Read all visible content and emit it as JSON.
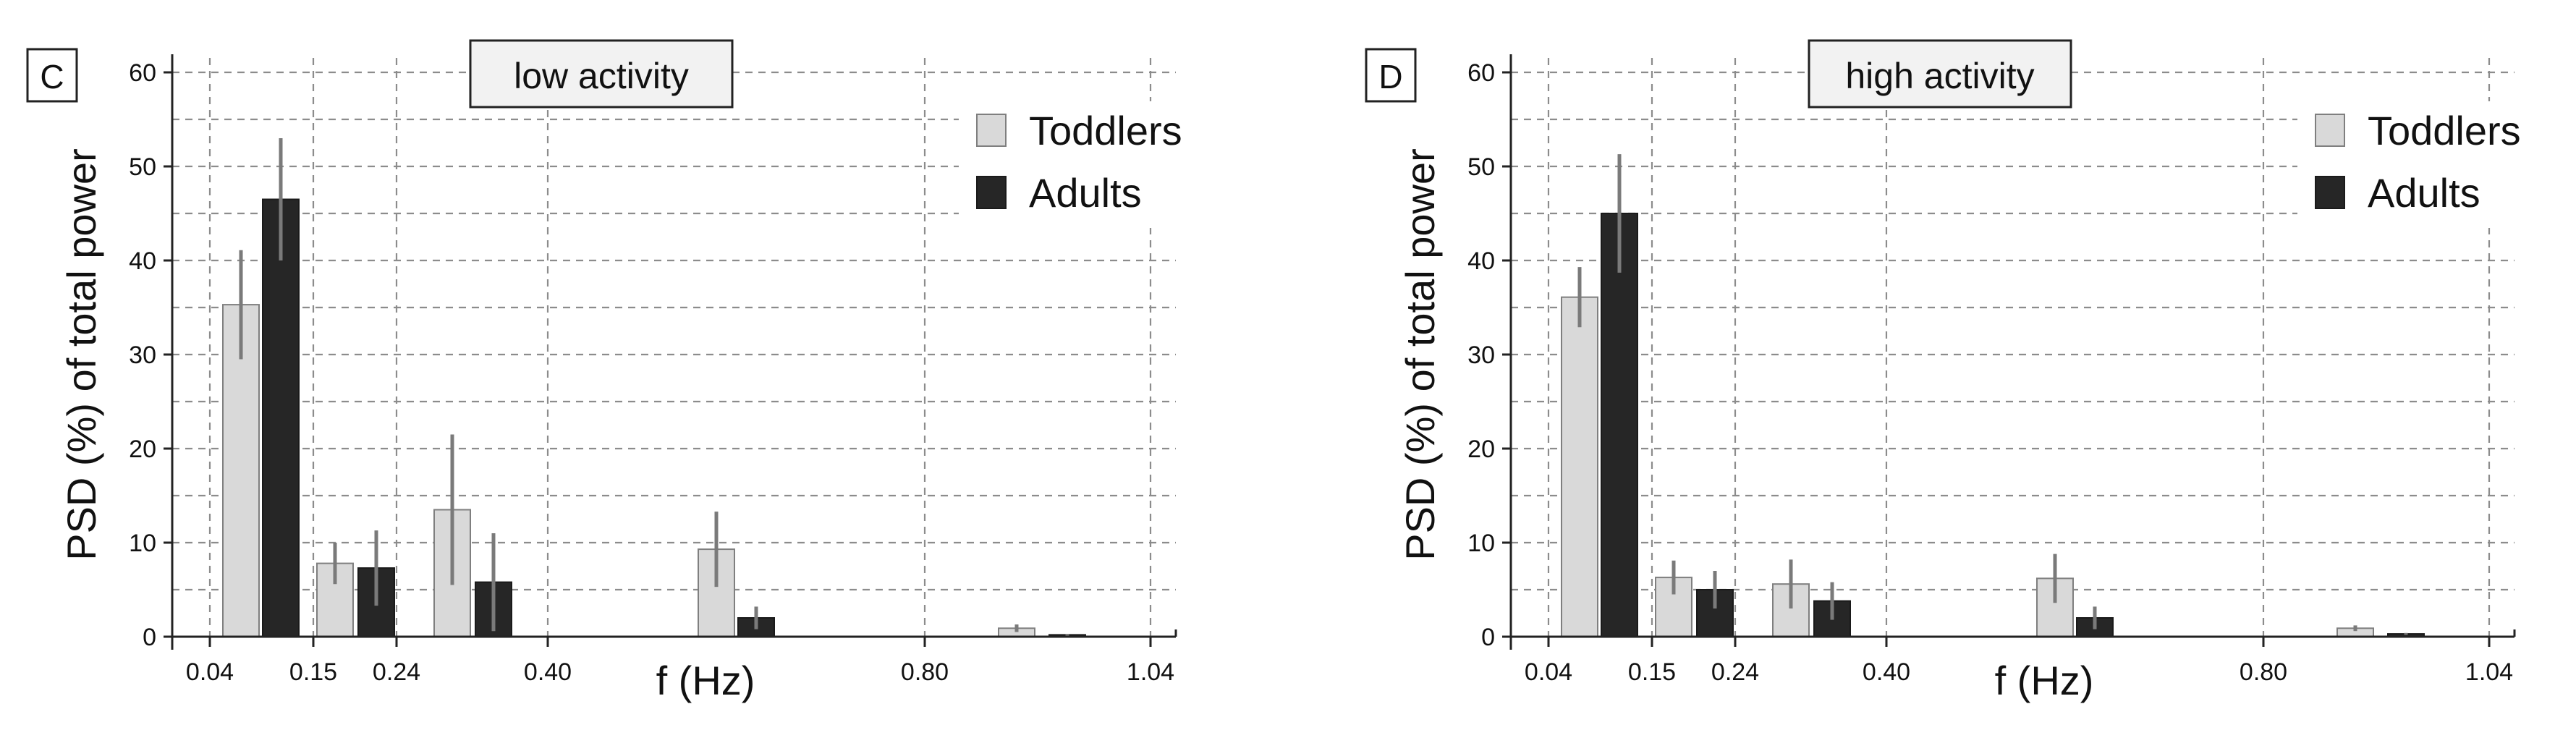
{
  "chart_data": [
    {
      "type": "bar",
      "panel_label": "C",
      "title": "low activity",
      "xlabel": "f (Hz)",
      "ylabel": "PSD (%) of total power",
      "ylim": [
        0,
        60
      ],
      "yticks": [
        0,
        10,
        20,
        30,
        40,
        50,
        60
      ],
      "xticks": [
        "0.04",
        "0.15",
        "0.24",
        "0.40",
        "0.80",
        "1.04"
      ],
      "categories": [
        "0.04-0.15",
        "0.15-0.24",
        "0.24-0.40",
        "0.40-0.80",
        "0.80-1.04"
      ],
      "series": [
        {
          "name": "Toddlers",
          "color": "#d9d9d9",
          "values": [
            35.3,
            7.8,
            13.5,
            9.3,
            0.9
          ],
          "errors": [
            5.8,
            2.2,
            8.0,
            4.0,
            0.4
          ]
        },
        {
          "name": "Adults",
          "color": "#262626",
          "values": [
            46.5,
            7.3,
            5.8,
            2.0,
            0.2
          ],
          "errors": [
            6.5,
            4.0,
            5.2,
            1.2,
            0.1
          ]
        }
      ],
      "legend_position": "top-right",
      "grid": true
    },
    {
      "type": "bar",
      "panel_label": "D",
      "title": "high activity",
      "xlabel": "f (Hz)",
      "ylabel": "PSD (%) of total power",
      "ylim": [
        0,
        60
      ],
      "yticks": [
        0,
        10,
        20,
        30,
        40,
        50,
        60
      ],
      "xticks": [
        "0.04",
        "0.15",
        "0.24",
        "0.40",
        "0.80",
        "1.04"
      ],
      "categories": [
        "0.04-0.15",
        "0.15-0.24",
        "0.24-0.40",
        "0.40-0.80",
        "0.80-1.04"
      ],
      "series": [
        {
          "name": "Toddlers",
          "color": "#d9d9d9",
          "values": [
            36.1,
            6.3,
            5.6,
            6.2,
            0.9
          ],
          "errors": [
            3.2,
            1.8,
            2.6,
            2.6,
            0.3
          ]
        },
        {
          "name": "Adults",
          "color": "#262626",
          "values": [
            45.0,
            5.0,
            3.8,
            2.0,
            0.3
          ],
          "errors": [
            6.3,
            2.0,
            2.0,
            1.2,
            0.1
          ]
        }
      ],
      "legend_position": "top-right",
      "grid": true
    }
  ]
}
